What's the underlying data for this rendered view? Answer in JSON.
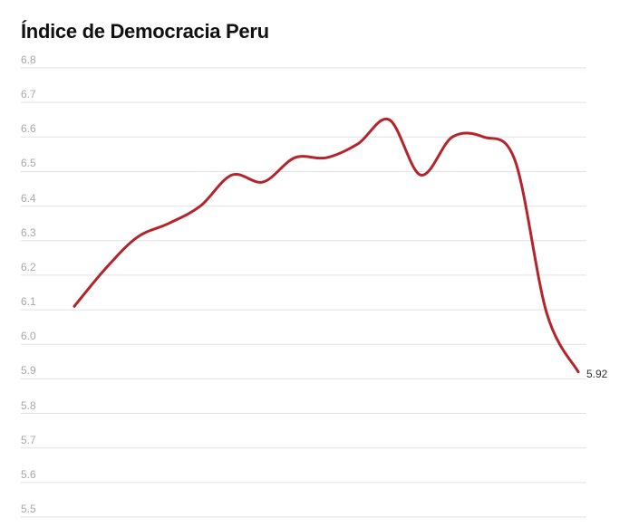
{
  "header": {
    "title": "Índice de Democracia Peru"
  },
  "end_label": "5.92",
  "colors": {
    "line": "#b5232b",
    "grid": "#e2e2e2",
    "tick": "#a8a8a8"
  },
  "chart_data": {
    "type": "line",
    "title": "Índice de Democracia Peru",
    "xlabel": "",
    "ylabel": "",
    "ylim": [
      5.5,
      6.8
    ],
    "yticks": [
      "6.8",
      "6.7",
      "6.6",
      "6.5",
      "6.4",
      "6.3",
      "6.2",
      "6.1",
      "6.0",
      "5.9",
      "5.8",
      "5.7",
      "5.6",
      "5.5"
    ],
    "grid": true,
    "legend": "none",
    "series": [
      {
        "name": "Peru",
        "values": [
          6.11,
          6.22,
          6.31,
          6.35,
          6.4,
          6.49,
          6.47,
          6.54,
          6.54,
          6.58,
          6.65,
          6.49,
          6.6,
          6.6,
          6.53,
          6.09,
          5.92
        ]
      }
    ],
    "annotations": [
      {
        "label": "5.92",
        "position": "last-point"
      }
    ]
  }
}
